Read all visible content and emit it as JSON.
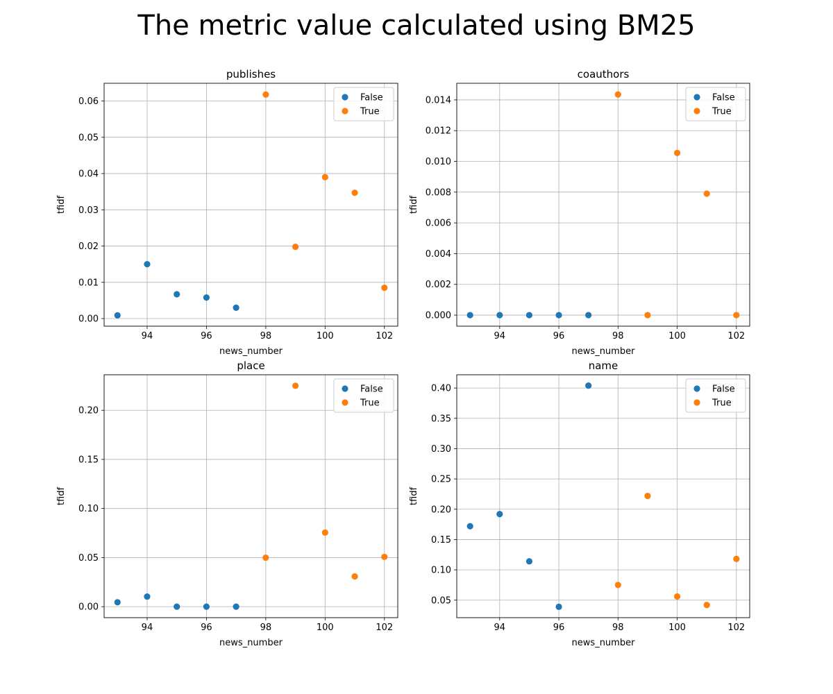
{
  "figure": {
    "title": "The metric value calculated using BM25"
  },
  "colors": {
    "False": "#1f77b4",
    "True": "#ff7f0e",
    "grid": "#b0b0b0",
    "axes": "#000000"
  },
  "chart_data": [
    {
      "type": "scatter",
      "title": "publishes",
      "xlabel": "news_number",
      "ylabel": "tfidf",
      "xlim": [
        92.55,
        102.45
      ],
      "ylim": [
        -0.0021,
        0.0649
      ],
      "xticks": [
        94,
        96,
        98,
        100,
        102
      ],
      "yticks": [
        0.0,
        0.01,
        0.02,
        0.03,
        0.04,
        0.05,
        0.06
      ],
      "ytick_labels": [
        "0.00",
        "0.01",
        "0.02",
        "0.03",
        "0.04",
        "0.05",
        "0.06"
      ],
      "grid": true,
      "legend": "upper-right",
      "series": [
        {
          "name": "False",
          "x": [
            93,
            94,
            95,
            96,
            97
          ],
          "y": [
            0.0009,
            0.015,
            0.0067,
            0.0058,
            0.003
          ]
        },
        {
          "name": "True",
          "x": [
            98,
            99,
            100,
            101,
            102
          ],
          "y": [
            0.0618,
            0.0198,
            0.039,
            0.0347,
            0.0085
          ]
        }
      ]
    },
    {
      "type": "scatter",
      "title": "coauthors",
      "xlabel": "news_number",
      "ylabel": "tfidf",
      "xlim": [
        92.55,
        102.45
      ],
      "ylim": [
        -0.00072,
        0.01508
      ],
      "xticks": [
        94,
        96,
        98,
        100,
        102
      ],
      "yticks": [
        0.0,
        0.002,
        0.004,
        0.006,
        0.008,
        0.01,
        0.012,
        0.014
      ],
      "ytick_labels": [
        "0.000",
        "0.002",
        "0.004",
        "0.006",
        "0.008",
        "0.010",
        "0.012",
        "0.014"
      ],
      "grid": true,
      "legend": "upper-right",
      "series": [
        {
          "name": "False",
          "x": [
            93,
            94,
            95,
            96,
            97
          ],
          "y": [
            0.0,
            0.0,
            0.0,
            0.0,
            0.0
          ]
        },
        {
          "name": "True",
          "x": [
            98,
            99,
            100,
            101,
            102
          ],
          "y": [
            0.01435,
            0.0,
            0.01055,
            0.0079,
            0.0
          ]
        }
      ]
    },
    {
      "type": "scatter",
      "title": "place",
      "xlabel": "news_number",
      "ylabel": "tfidf",
      "xlim": [
        92.55,
        102.45
      ],
      "ylim": [
        -0.0112,
        0.2362
      ],
      "xticks": [
        94,
        96,
        98,
        100,
        102
      ],
      "yticks": [
        0.0,
        0.05,
        0.1,
        0.15,
        0.2
      ],
      "ytick_labels": [
        "0.00",
        "0.05",
        "0.10",
        "0.15",
        "0.20"
      ],
      "grid": true,
      "legend": "upper-right",
      "series": [
        {
          "name": "False",
          "x": [
            93,
            94,
            95,
            96,
            97
          ],
          "y": [
            0.0045,
            0.0103,
            0.0,
            0.0,
            0.0
          ]
        },
        {
          "name": "True",
          "x": [
            98,
            99,
            100,
            101,
            102
          ],
          "y": [
            0.0499,
            0.225,
            0.0755,
            0.0308,
            0.0507
          ]
        }
      ]
    },
    {
      "type": "scatter",
      "title": "name",
      "xlabel": "news_number",
      "ylabel": "tfidf",
      "xlim": [
        92.55,
        102.45
      ],
      "ylim": [
        0.0211,
        0.4219
      ],
      "xticks": [
        94,
        96,
        98,
        100,
        102
      ],
      "yticks": [
        0.05,
        0.1,
        0.15,
        0.2,
        0.25,
        0.3,
        0.35,
        0.4
      ],
      "ytick_labels": [
        "0.05",
        "0.10",
        "0.15",
        "0.20",
        "0.25",
        "0.30",
        "0.35",
        "0.40"
      ],
      "grid": true,
      "legend": "upper-right",
      "series": [
        {
          "name": "False",
          "x": [
            93,
            94,
            95,
            96,
            97
          ],
          "y": [
            0.172,
            0.192,
            0.114,
            0.039,
            0.404
          ]
        },
        {
          "name": "True",
          "x": [
            98,
            99,
            100,
            101,
            102
          ],
          "y": [
            0.075,
            0.222,
            0.056,
            0.042,
            0.118
          ]
        }
      ]
    }
  ]
}
